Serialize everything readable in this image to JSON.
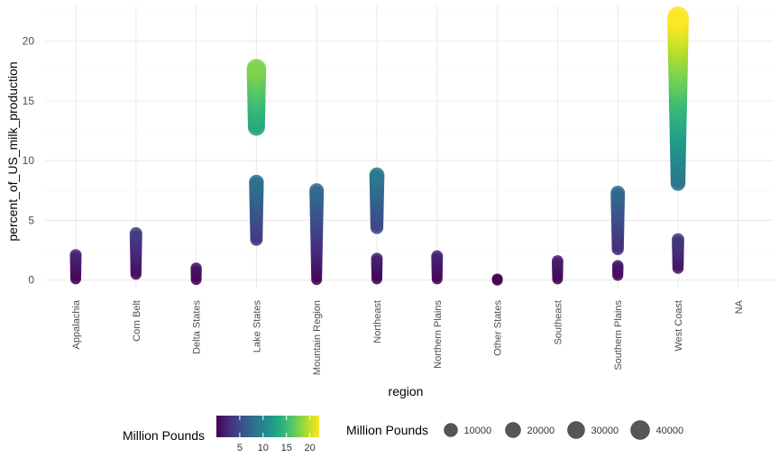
{
  "chart_data": {
    "type": "scatter",
    "xlabel": "region",
    "ylabel": "percent_of_US_milk_production",
    "categories": [
      "Appalachia",
      "Corn Belt",
      "Delta States",
      "Lake States",
      "Mountain Region",
      "Northeast",
      "Northern Plains",
      "Other States",
      "Southeast",
      "Southern Plains",
      "West Coast",
      "NA"
    ],
    "ylim": [
      -0.7,
      23
    ],
    "yticks": [
      0,
      5,
      10,
      15,
      20
    ],
    "grid": true,
    "color_scale": {
      "title": "Million Pounds",
      "min": 0,
      "max": 22,
      "ticks": [
        5,
        10,
        15,
        20
      ],
      "palette": [
        "#440154",
        "#482878",
        "#3e4989",
        "#31688e",
        "#26828e",
        "#1f9e89",
        "#35b779",
        "#6ece58",
        "#b5de2b",
        "#fde725"
      ]
    },
    "size_legend": {
      "title": "Million Pounds",
      "breaks": [
        10000,
        20000,
        30000,
        40000
      ]
    },
    "series": [
      {
        "region": "Appalachia",
        "clusters": [
          {
            "from": 0.1,
            "to": 2.1
          }
        ]
      },
      {
        "region": "Corn Belt",
        "clusters": [
          {
            "from": 0.5,
            "to": 3.9
          }
        ]
      },
      {
        "region": "Delta States",
        "clusters": [
          {
            "from": 0.05,
            "to": 1.0
          }
        ]
      },
      {
        "region": "Lake States",
        "clusters": [
          {
            "from": 3.4,
            "to": 8.2
          },
          {
            "from": 12.8,
            "to": 17.7
          }
        ]
      },
      {
        "region": "Mountain Region",
        "clusters": [
          {
            "from": 0.05,
            "to": 7.5
          }
        ]
      },
      {
        "region": "Northeast",
        "clusters": [
          {
            "from": 0.1,
            "to": 1.8
          },
          {
            "from": 4.4,
            "to": 8.8
          }
        ]
      },
      {
        "region": "Northern Plains",
        "clusters": [
          {
            "from": 0.1,
            "to": 2.0
          }
        ]
      },
      {
        "region": "Other States",
        "clusters": [
          {
            "from": 0.0,
            "to": 0.1
          }
        ]
      },
      {
        "region": "Southeast",
        "clusters": [
          {
            "from": 0.1,
            "to": 1.6
          }
        ]
      },
      {
        "region": "Southern Plains",
        "clusters": [
          {
            "from": 0.4,
            "to": 1.2
          },
          {
            "from": 2.6,
            "to": 7.3
          }
        ]
      },
      {
        "region": "West Coast",
        "clusters": [
          {
            "from": 1.0,
            "to": 3.4
          },
          {
            "from": 8.1,
            "to": 22.0
          }
        ]
      }
    ]
  }
}
